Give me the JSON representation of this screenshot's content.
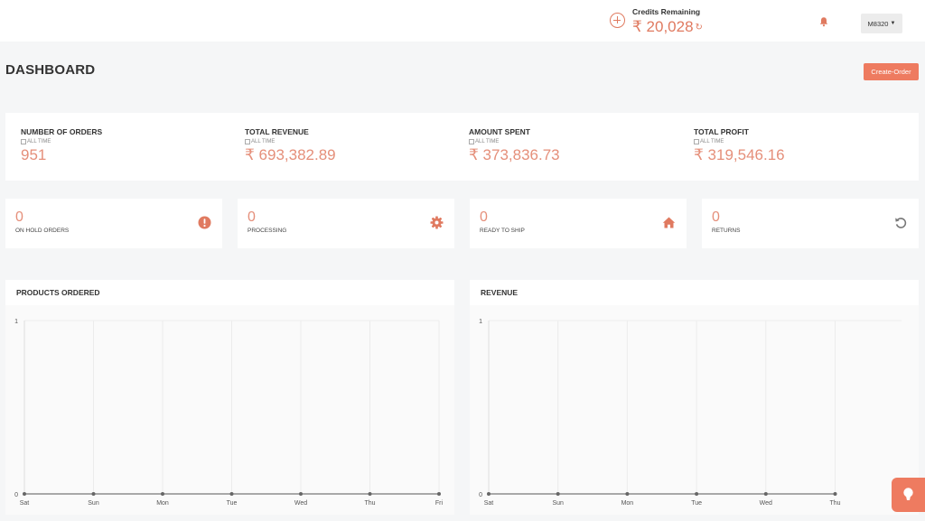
{
  "header": {
    "add_icon": "plus-circle-icon",
    "credits_label": "Credits Remaining",
    "credits_value": "₹ 20,028",
    "refresh_icon": "refresh-icon",
    "bell_icon": "bell-icon",
    "user_label": "M8320",
    "accent_color": "#e07a60"
  },
  "page": {
    "title": "DASHBOARD",
    "create_order_label": "Create-Order"
  },
  "stats": [
    {
      "label": "NUMBER OF ORDERS",
      "period": "ALL TIME",
      "value": "951"
    },
    {
      "label": "TOTAL REVENUE",
      "period": "ALL TIME",
      "value": "₹ 693,382.89"
    },
    {
      "label": "AMOUNT SPENT",
      "period": "ALL TIME",
      "value": "₹ 373,836.73"
    },
    {
      "label": "TOTAL PROFIT",
      "period": "ALL TIME",
      "value": "₹ 319,546.16"
    }
  ],
  "status": [
    {
      "count": "0",
      "label": "ON HOLD ORDERS",
      "icon": "exclamation-icon"
    },
    {
      "count": "0",
      "label": "PROCESSING",
      "icon": "gear-icon"
    },
    {
      "count": "0",
      "label": "READY TO SHIP",
      "icon": "home-icon"
    },
    {
      "count": "0",
      "label": "RETURNS",
      "icon": "undo-icon"
    }
  ],
  "chart_data": [
    {
      "type": "line",
      "title": "PRODUCTS ORDERED",
      "categories": [
        "Sat",
        "Sun",
        "Mon",
        "Tue",
        "Wed",
        "Thu",
        "Fri"
      ],
      "values": [
        0,
        0,
        0,
        0,
        0,
        0,
        0
      ],
      "ylim": [
        0,
        1
      ],
      "yticks": [
        "0",
        "1"
      ],
      "grid": true
    },
    {
      "type": "line",
      "title": "REVENUE",
      "categories": [
        "Sat",
        "Sun",
        "Mon",
        "Tue",
        "Wed",
        "Thu"
      ],
      "values": [
        0,
        0,
        0,
        0,
        0,
        0
      ],
      "ylim": [
        0,
        1
      ],
      "yticks": [
        "0",
        "1"
      ],
      "grid": true
    }
  ],
  "fab_icon": "lightbulb-icon"
}
